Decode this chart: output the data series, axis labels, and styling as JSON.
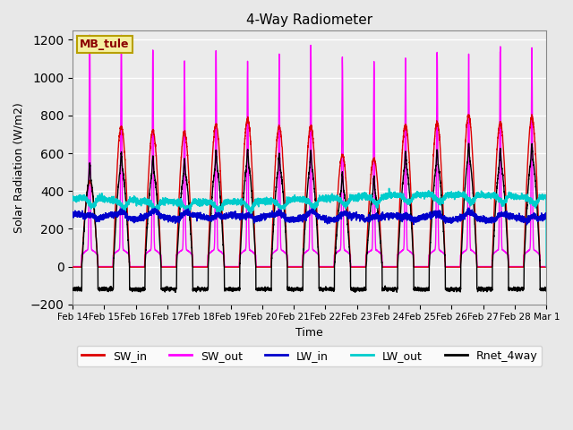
{
  "title": "4-Way Radiometer",
  "xlabel": "Time",
  "ylabel": "Solar Radiation (W/m2)",
  "ylim": [
    -200,
    1250
  ],
  "yticks": [
    -200,
    0,
    200,
    400,
    600,
    800,
    1000,
    1200
  ],
  "date_labels": [
    "Feb 14",
    "Feb 15",
    "Feb 16",
    "Feb 17",
    "Feb 18",
    "Feb 19",
    "Feb 20",
    "Feb 21",
    "Feb 22",
    "Feb 23",
    "Feb 24",
    "Feb 25",
    "Feb 26",
    "Feb 27",
    "Feb 28",
    "Mar 1"
  ],
  "station_label": "MB_tule",
  "series": {
    "SW_in": {
      "color": "#dd0000",
      "lw": 1.0
    },
    "SW_out": {
      "color": "#ff00ff",
      "lw": 1.0
    },
    "LW_in": {
      "color": "#0000cc",
      "lw": 1.2
    },
    "LW_out": {
      "color": "#00cccc",
      "lw": 1.2
    },
    "Rnet_4way": {
      "color": "#000000",
      "lw": 1.0
    }
  },
  "SW_in_amps": [
    450,
    740,
    720,
    710,
    750,
    780,
    740,
    740,
    590,
    570,
    750,
    760,
    800,
    760,
    790
  ],
  "SW_out_amps": [
    1130,
    1130,
    1050,
    1000,
    1050,
    1000,
    1010,
    1080,
    1010,
    1000,
    1000,
    1050,
    1030,
    1080,
    1060
  ],
  "Rnet_amps": [
    460,
    520,
    500,
    490,
    530,
    540,
    520,
    530,
    410,
    395,
    530,
    540,
    570,
    540,
    570
  ],
  "legend_ncol": 5,
  "bg_color": "#e8e8e8",
  "plot_bg_color": "#ebebeb"
}
